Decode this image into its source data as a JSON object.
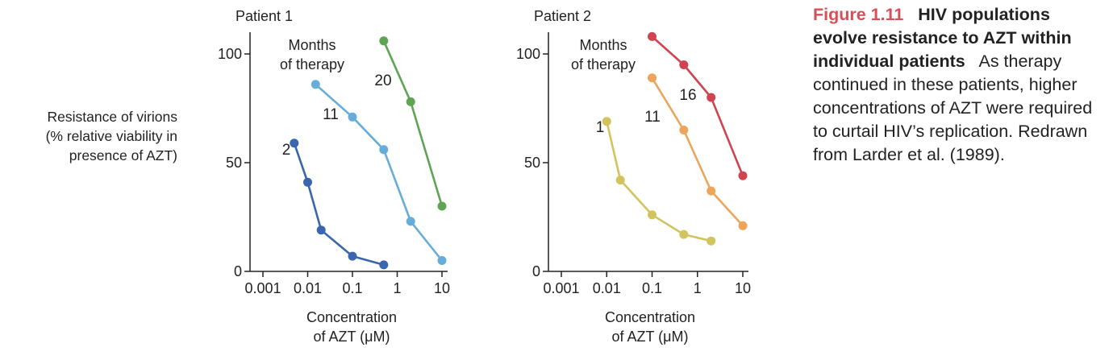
{
  "ylabel": [
    "Resistance of virions",
    "(% relative viability in",
    "presence of AZT)"
  ],
  "caption": {
    "number": "Figure 1.11",
    "title": "HIV populations evolve resistance to AZT within individual patients",
    "body": "As therapy continued in these patients, higher concentrations of AZT were required to curtail HIV’s replication. Redrawn from Larder et al. (1989)."
  },
  "colors": {
    "axis": "#222222",
    "caption_accent": "#d94f55"
  },
  "chart_data": [
    {
      "type": "line",
      "panel_label": "Patient 1",
      "legend_title": [
        "Months",
        "of therapy"
      ],
      "xscale": "log",
      "xlim": [
        0.001,
        10
      ],
      "ylim": [
        0,
        100
      ],
      "xticks": [
        "0.001",
        "0.01",
        "0.1",
        "1",
        "10"
      ],
      "yticks": [
        "0",
        "50",
        "100"
      ],
      "xlabel": [
        "Concentration",
        "of AZT (μM)"
      ],
      "series": [
        {
          "name": "2",
          "color": "#3a66ad",
          "x": [
            0.005,
            0.01,
            0.02,
            0.1,
            0.5
          ],
          "y": [
            59,
            41,
            19,
            7,
            3
          ]
        },
        {
          "name": "11",
          "color": "#68acd9",
          "x": [
            0.015,
            0.1,
            0.5,
            2,
            10
          ],
          "y": [
            86,
            71,
            56,
            23,
            5
          ]
        },
        {
          "name": "20",
          "color": "#5fa452",
          "x": [
            0.5,
            2,
            10
          ],
          "y": [
            106,
            78,
            30
          ]
        }
      ]
    },
    {
      "type": "line",
      "panel_label": "Patient 2",
      "legend_title": [
        "Months",
        "of therapy"
      ],
      "xscale": "log",
      "xlim": [
        0.001,
        10
      ],
      "ylim": [
        0,
        100
      ],
      "xticks": [
        "0.001",
        "0.01",
        "0.1",
        "1",
        "10"
      ],
      "yticks": [
        "0",
        "50",
        "100"
      ],
      "xlabel": [
        "Concentration",
        "of AZT (μM)"
      ],
      "series": [
        {
          "name": "1",
          "color": "#d1c45c",
          "x": [
            0.01,
            0.02,
            0.1,
            0.5,
            2
          ],
          "y": [
            69,
            42,
            26,
            17,
            14
          ]
        },
        {
          "name": "11",
          "color": "#eca55a",
          "x": [
            0.1,
            0.5,
            2,
            10
          ],
          "y": [
            89,
            65,
            37,
            21
          ]
        },
        {
          "name": "16",
          "color": "#d04350",
          "x": [
            0.1,
            0.5,
            2,
            10
          ],
          "y": [
            108,
            95,
            80,
            44
          ]
        }
      ]
    }
  ]
}
